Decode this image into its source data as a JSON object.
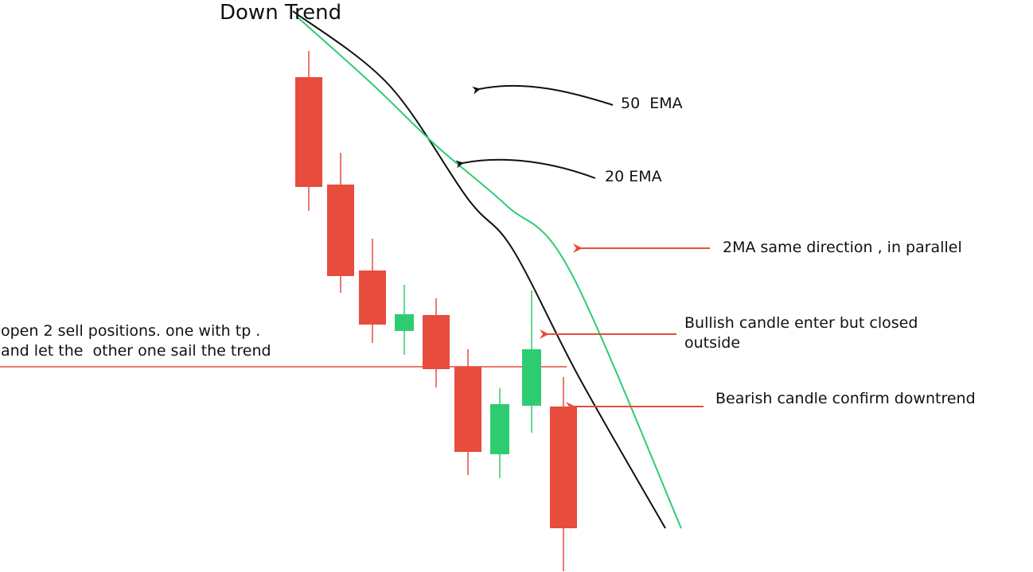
{
  "title": "Down Trend",
  "colors": {
    "bearish": "#e74c3c",
    "bullish": "#2ecc71",
    "ema20": "#2ecc71",
    "ema50": "#111111",
    "pointer_black": "#111111",
    "pointer_red": "#e74c3c",
    "entry_line": "#e74c3c",
    "text": "#111111"
  },
  "candles": [
    {
      "direction": "bearish",
      "open": 621,
      "close": 483,
      "high": 654,
      "low": 453
    },
    {
      "direction": "bearish",
      "open": 486,
      "close": 371,
      "high": 526,
      "low": 350
    },
    {
      "direction": "bearish",
      "open": 378,
      "close": 310,
      "high": 418,
      "low": 287
    },
    {
      "direction": "bullish",
      "open": 302,
      "close": 323,
      "high": 360,
      "low": 272
    },
    {
      "direction": "bearish",
      "open": 322,
      "close": 254,
      "high": 343,
      "low": 231
    },
    {
      "direction": "bearish",
      "open": 257,
      "close": 150,
      "high": 279,
      "low": 121
    },
    {
      "direction": "bullish",
      "open": 147,
      "close": 210,
      "high": 230,
      "low": 117
    },
    {
      "direction": "bullish",
      "open": 208,
      "close": 279,
      "high": 353,
      "low": 174
    },
    {
      "direction": "bearish",
      "open": 207,
      "close": 54,
      "high": 244,
      "low": 0
    }
  ],
  "ema20": {
    "label": "20 EMA",
    "points": [
      [
        -0.4,
        698
      ],
      [
        2,
        612
      ],
      [
        4,
        535
      ],
      [
        6.2,
        460
      ],
      [
        8.2,
        378
      ],
      [
        11.7,
        54
      ]
    ]
  },
  "ema50": {
    "label": "50 EMA",
    "points": [
      [
        -0.5,
        704
      ],
      [
        2.5,
        612
      ],
      [
        5,
        468
      ],
      [
        6.4,
        405
      ],
      [
        8.5,
        243
      ],
      [
        11.2,
        54
      ]
    ]
  },
  "entry_level": 257,
  "annotations": {
    "ema50_label": "50  EMA",
    "ema20_label": "20 EMA",
    "parallel_note": "2MA same direction , in parallel",
    "bullish_note_line1": "Bullish candle enter but closed",
    "bullish_note_line2": "outside",
    "bearish_note": "Bearish candle confirm downtrend",
    "entry_note_line1": "open 2 sell positions. one with tp .",
    "entry_note_line2": "and let the  other one sail the trend"
  }
}
